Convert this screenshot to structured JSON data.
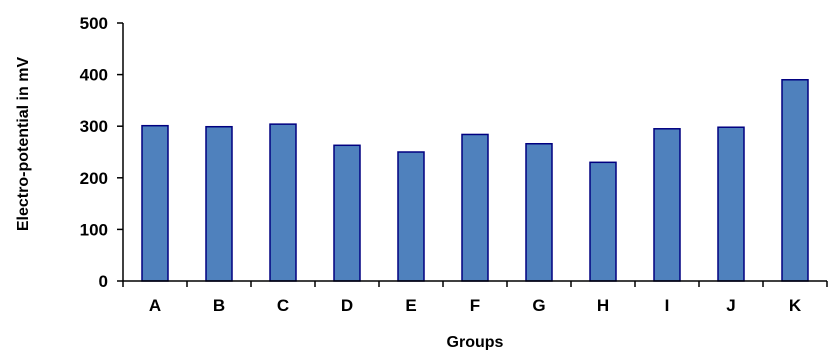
{
  "chart_data": {
    "type": "bar",
    "title": "",
    "xlabel": "Groups",
    "ylabel": "Electro-potential in mV",
    "categories": [
      "A",
      "B",
      "C",
      "D",
      "E",
      "F",
      "G",
      "H",
      "I",
      "J",
      "K"
    ],
    "values": [
      301,
      299,
      304,
      263,
      250,
      284,
      266,
      230,
      295,
      298,
      390
    ],
    "ylim": [
      0,
      500
    ],
    "yticks": [
      0,
      100,
      200,
      300,
      400,
      500
    ],
    "grid": false,
    "legend": "none",
    "colors": {
      "bar_fill": "#4f81bd",
      "bar_stroke": "#000080",
      "axis": "#000000"
    }
  }
}
